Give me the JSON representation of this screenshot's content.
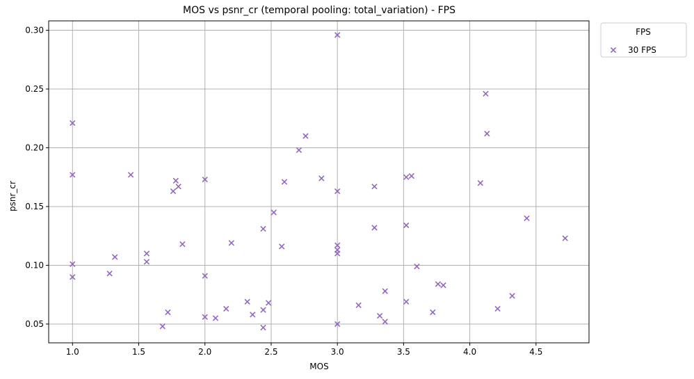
{
  "chart_data": {
    "type": "scatter",
    "title": "MOS vs psnr_cr (temporal pooling: total_variation) - FPS",
    "xlabel": "MOS",
    "ylabel": "psnr_cr",
    "xlim": [
      0.82,
      4.9
    ],
    "ylim": [
      0.034,
      0.308
    ],
    "xticks": [
      1.0,
      1.5,
      2.0,
      2.5,
      3.0,
      3.5,
      4.0,
      4.5
    ],
    "xtick_labels": [
      "1.0",
      "1.5",
      "2.0",
      "2.5",
      "3.0",
      "3.5",
      "4.0",
      "4.5"
    ],
    "yticks": [
      0.05,
      0.1,
      0.15,
      0.2,
      0.25,
      0.3
    ],
    "ytick_labels": [
      "0.05",
      "0.10",
      "0.15",
      "0.20",
      "0.25",
      "0.30"
    ],
    "grid": true,
    "legend": {
      "title": "FPS",
      "placement": "outside-top-right"
    },
    "series": [
      {
        "name": "30 FPS",
        "color": "#9467bd",
        "marker": "x",
        "points": [
          [
            1.0,
            0.221
          ],
          [
            1.0,
            0.177
          ],
          [
            1.0,
            0.101
          ],
          [
            1.0,
            0.09
          ],
          [
            1.28,
            0.093
          ],
          [
            1.32,
            0.107
          ],
          [
            1.44,
            0.177
          ],
          [
            1.56,
            0.11
          ],
          [
            1.56,
            0.103
          ],
          [
            1.68,
            0.048
          ],
          [
            1.72,
            0.06
          ],
          [
            1.76,
            0.163
          ],
          [
            1.78,
            0.172
          ],
          [
            1.8,
            0.167
          ],
          [
            1.83,
            0.118
          ],
          [
            2.0,
            0.173
          ],
          [
            2.0,
            0.091
          ],
          [
            2.0,
            0.056
          ],
          [
            2.08,
            0.055
          ],
          [
            2.16,
            0.063
          ],
          [
            2.2,
            0.119
          ],
          [
            2.32,
            0.069
          ],
          [
            2.36,
            0.058
          ],
          [
            2.44,
            0.131
          ],
          [
            2.44,
            0.062
          ],
          [
            2.44,
            0.047
          ],
          [
            2.48,
            0.068
          ],
          [
            2.52,
            0.145
          ],
          [
            2.58,
            0.116
          ],
          [
            2.6,
            0.171
          ],
          [
            2.71,
            0.198
          ],
          [
            2.76,
            0.21
          ],
          [
            2.88,
            0.174
          ],
          [
            3.0,
            0.296
          ],
          [
            3.0,
            0.163
          ],
          [
            3.0,
            0.117
          ],
          [
            3.0,
            0.113
          ],
          [
            3.0,
            0.11
          ],
          [
            3.0,
            0.05
          ],
          [
            3.16,
            0.066
          ],
          [
            3.28,
            0.167
          ],
          [
            3.28,
            0.132
          ],
          [
            3.32,
            0.057
          ],
          [
            3.36,
            0.078
          ],
          [
            3.36,
            0.052
          ],
          [
            3.52,
            0.175
          ],
          [
            3.52,
            0.134
          ],
          [
            3.52,
            0.069
          ],
          [
            3.56,
            0.176
          ],
          [
            3.6,
            0.099
          ],
          [
            3.72,
            0.06
          ],
          [
            3.76,
            0.084
          ],
          [
            3.8,
            0.083
          ],
          [
            4.08,
            0.17
          ],
          [
            4.12,
            0.246
          ],
          [
            4.13,
            0.212
          ],
          [
            4.21,
            0.063
          ],
          [
            4.32,
            0.074
          ],
          [
            4.43,
            0.14
          ],
          [
            4.72,
            0.123
          ]
        ]
      }
    ]
  }
}
